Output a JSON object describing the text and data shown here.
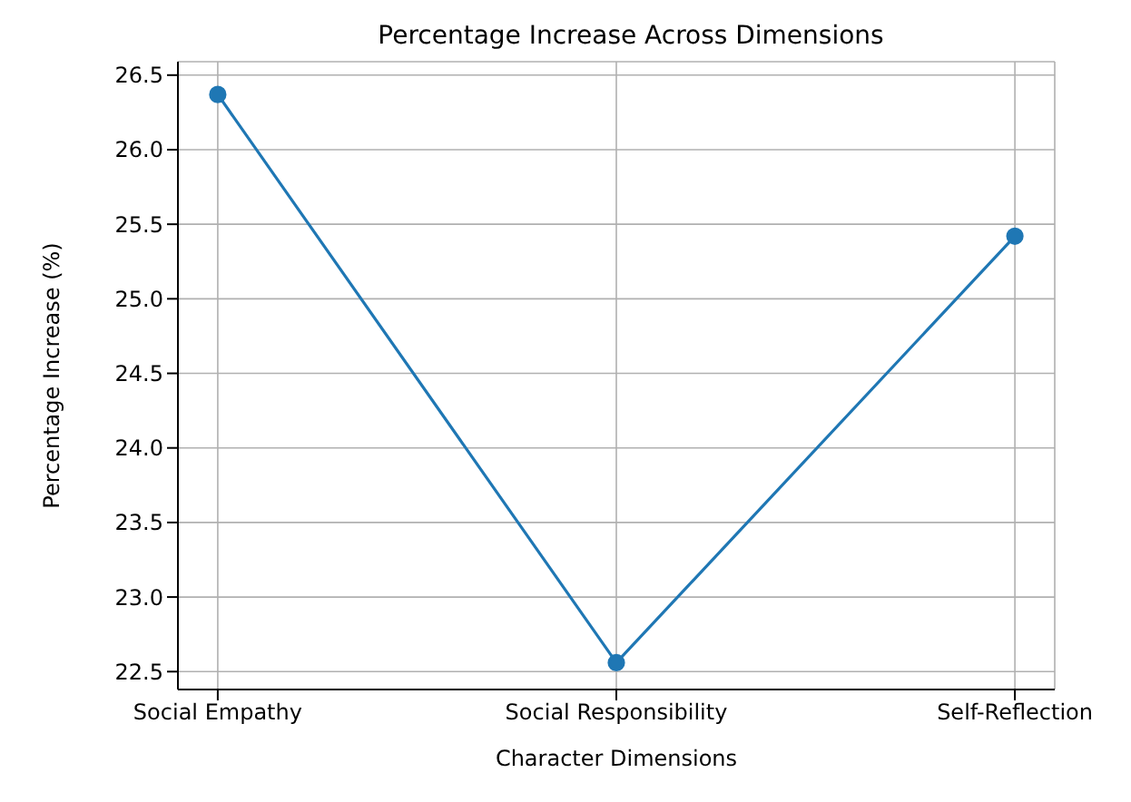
{
  "chart_data": {
    "type": "line",
    "title": "Percentage Increase Across Dimensions",
    "xlabel": "Character Dimensions",
    "ylabel": "Percentage Increase (%)",
    "categories": [
      "Social Empathy",
      "Social Responsibility",
      "Self-Reflection"
    ],
    "series": [
      {
        "color": "#1f77b4",
        "values": [
          26.37,
          22.56,
          25.42
        ]
      }
    ],
    "ylim": [
      22.38,
      26.59
    ],
    "yticks": [
      22.5,
      {
        "value": 23,
        "label": "23.0"
      },
      23.5,
      {
        "value": 24,
        "label": "24.0"
      },
      24.5,
      {
        "value": 25,
        "label": "25.0"
      },
      25.5,
      {
        "value": 26,
        "label": "26.0"
      },
      26.5
    ],
    "grid": true,
    "marker": "circle",
    "line_style": "solid"
  }
}
